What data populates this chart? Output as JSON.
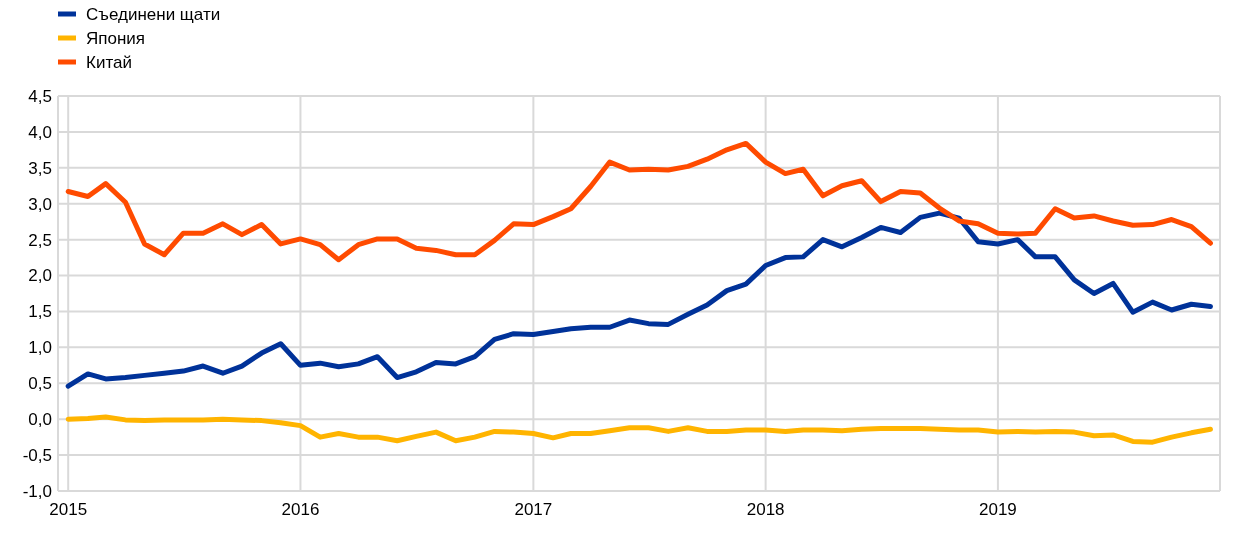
{
  "chart_data": {
    "type": "line",
    "x": [
      "2015-01",
      "2015-02",
      "2015-03",
      "2015-04",
      "2015-05",
      "2015-06",
      "2015-07",
      "2015-08",
      "2015-09",
      "2015-10",
      "2015-11",
      "2015-12",
      "2016-01",
      "2016-02",
      "2016-03",
      "2016-04",
      "2016-05",
      "2016-06",
      "2016-07",
      "2016-08",
      "2016-09",
      "2016-10",
      "2016-11",
      "2016-12",
      "2017-01",
      "2017-02",
      "2017-03",
      "2017-04",
      "2017-05",
      "2017-06",
      "2017-07",
      "2017-08",
      "2017-09",
      "2017-10",
      "2017-11",
      "2017-12",
      "2018-01",
      "2018-02",
      "2018-03",
      "2018-04",
      "2018-05",
      "2018-06",
      "2018-07",
      "2018-08",
      "2018-09",
      "2018-10",
      "2018-11",
      "2018-12",
      "2019-01",
      "2019-02",
      "2019-03",
      "2019-04",
      "2019-05",
      "2019-06",
      "2019-07",
      "2019-08",
      "2019-09",
      "2019-10",
      "2019-11",
      "2019-12"
    ],
    "series": [
      {
        "name": "Съединени щати",
        "color": "#003299",
        "values": [
          0.46,
          0.63,
          0.56,
          0.58,
          0.61,
          0.64,
          0.67,
          0.74,
          0.64,
          0.74,
          0.92,
          1.05,
          0.75,
          0.78,
          0.73,
          0.77,
          0.87,
          0.58,
          0.66,
          0.79,
          0.77,
          0.87,
          1.11,
          1.19,
          1.18,
          1.22,
          1.26,
          1.28,
          1.28,
          1.38,
          1.33,
          1.32,
          1.46,
          1.59,
          1.79,
          1.88,
          2.14,
          2.25,
          2.26,
          2.5,
          2.4,
          2.53,
          2.67,
          2.6,
          2.81,
          2.87,
          2.8,
          2.47,
          2.44,
          2.5,
          2.26,
          2.26,
          1.94,
          1.75,
          1.89,
          1.49,
          1.63,
          1.52,
          1.6,
          1.57
        ]
      },
      {
        "name": "Япония",
        "color": "#ffb400",
        "values": [
          0.0,
          0.01,
          0.03,
          -0.01,
          -0.02,
          -0.01,
          -0.01,
          -0.01,
          0.0,
          -0.01,
          -0.02,
          -0.05,
          -0.09,
          -0.25,
          -0.2,
          -0.25,
          -0.25,
          -0.3,
          -0.24,
          -0.18,
          -0.3,
          -0.25,
          -0.17,
          -0.18,
          -0.2,
          -0.26,
          -0.2,
          -0.2,
          -0.16,
          -0.12,
          -0.12,
          -0.17,
          -0.12,
          -0.17,
          -0.17,
          -0.15,
          -0.15,
          -0.17,
          -0.15,
          -0.15,
          -0.16,
          -0.14,
          -0.13,
          -0.13,
          -0.13,
          -0.14,
          -0.15,
          -0.15,
          -0.18,
          -0.17,
          -0.18,
          -0.17,
          -0.18,
          -0.23,
          -0.22,
          -0.31,
          -0.32,
          -0.25,
          -0.19,
          -0.14
        ]
      },
      {
        "name": "Китай",
        "color": "#ff4b00",
        "values": [
          3.17,
          3.1,
          3.28,
          3.02,
          2.44,
          2.29,
          2.59,
          2.59,
          2.72,
          2.57,
          2.71,
          2.44,
          2.51,
          2.43,
          2.22,
          2.43,
          2.51,
          2.51,
          2.38,
          2.35,
          2.29,
          2.29,
          2.49,
          2.72,
          2.71,
          2.82,
          2.93,
          3.24,
          3.58,
          3.47,
          3.48,
          3.47,
          3.52,
          3.62,
          3.75,
          3.84,
          3.58,
          3.42,
          3.48,
          3.11,
          3.25,
          3.32,
          3.03,
          3.17,
          3.15,
          2.94,
          2.76,
          2.72,
          2.59,
          2.58,
          2.59,
          2.93,
          2.8,
          2.83,
          2.76,
          2.7,
          2.71,
          2.78,
          2.68,
          2.45
        ]
      }
    ],
    "xlim": [
      "2014-12-16",
      "2019-12-16"
    ],
    "xticks": [
      {
        "value": "2015-01",
        "label": "2015"
      },
      {
        "value": "2016-01",
        "label": "2016"
      },
      {
        "value": "2017-01",
        "label": "2017"
      },
      {
        "value": "2018-01",
        "label": "2018"
      },
      {
        "value": "2019-01",
        "label": "2019"
      }
    ],
    "ylim": [
      -1,
      4.5
    ],
    "yticks": [
      {
        "value": -1,
        "label": "-1,0"
      },
      {
        "value": -0.5,
        "label": "-0,5"
      },
      {
        "value": 0,
        "label": "0,0"
      },
      {
        "value": 0.5,
        "label": "0,5"
      },
      {
        "value": 1,
        "label": "1,0"
      },
      {
        "value": 1.5,
        "label": "1,5"
      },
      {
        "value": 2,
        "label": "2,0"
      },
      {
        "value": 2.5,
        "label": "2,5"
      },
      {
        "value": 3,
        "label": "3,0"
      },
      {
        "value": 3.5,
        "label": "3,5"
      },
      {
        "value": 4,
        "label": "4,0"
      },
      {
        "value": 4.5,
        "label": "4,5"
      }
    ],
    "grid": true,
    "legend": "top left",
    "marker": "none",
    "line_style": "solid"
  }
}
